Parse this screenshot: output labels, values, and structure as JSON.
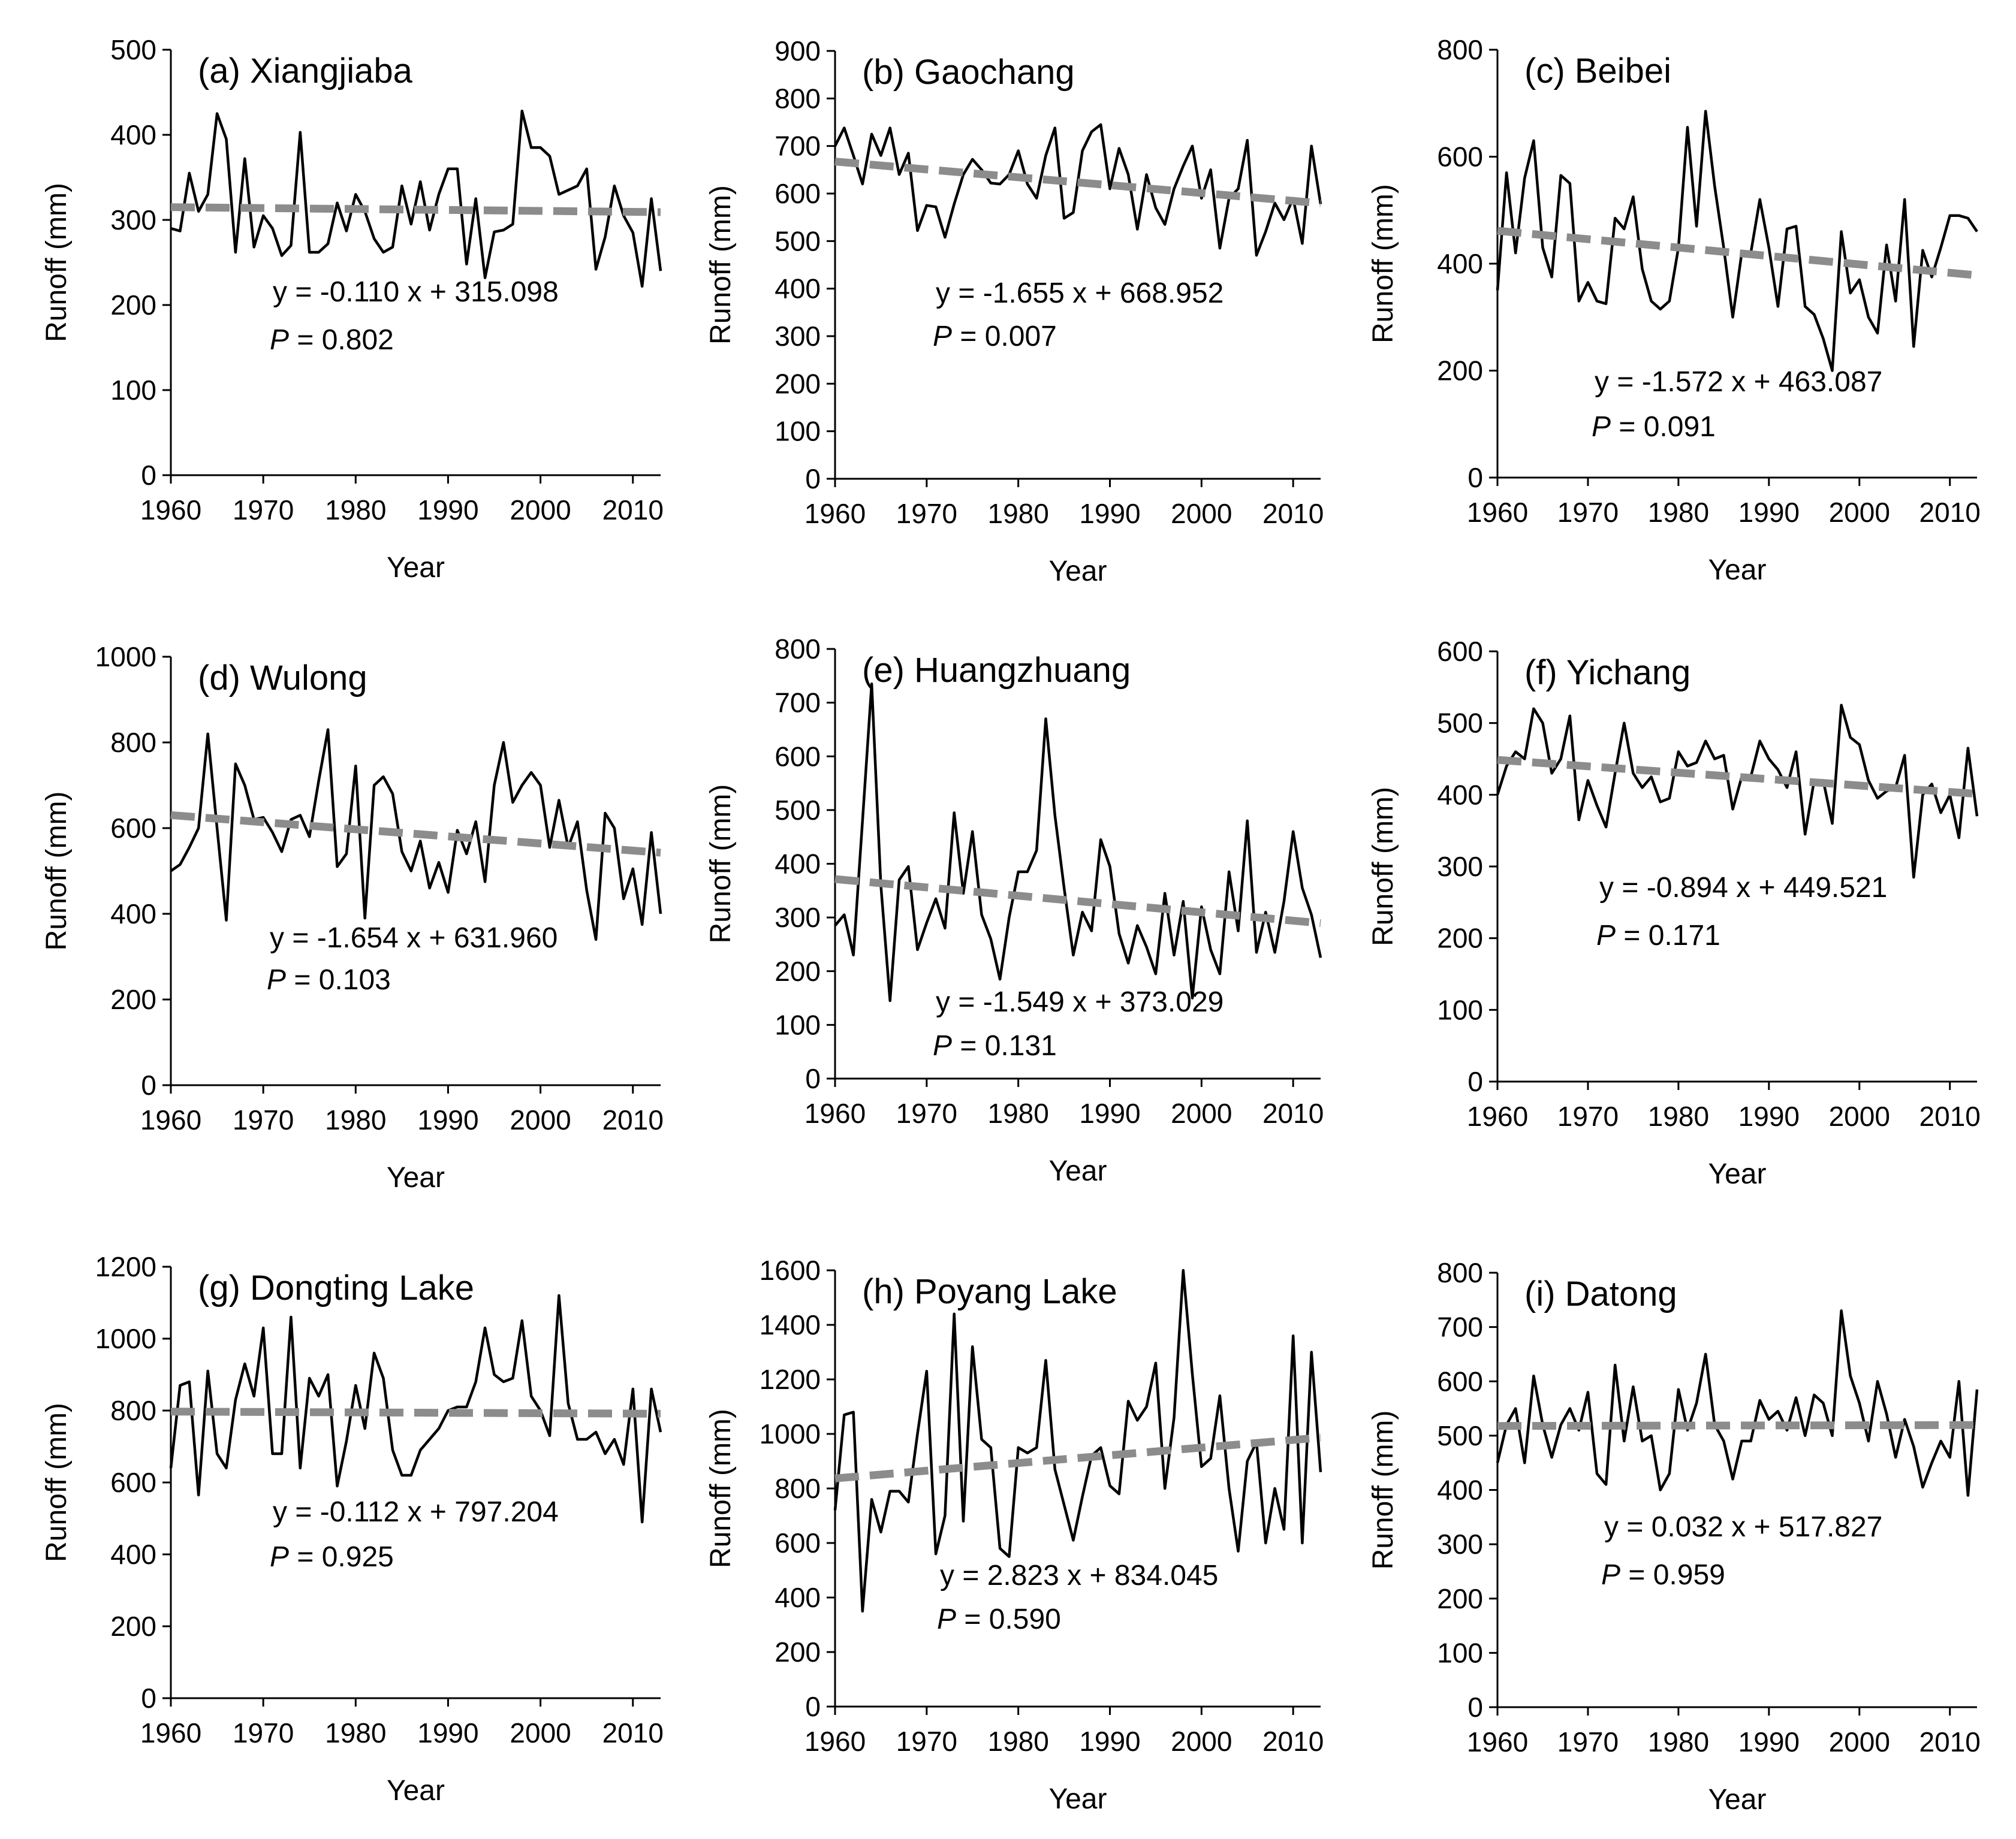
{
  "chart_data": [
    {
      "id": "a",
      "type": "line",
      "title": "(a)  Xiangjiaba",
      "xlabel": "Year",
      "ylabel": "Runoff (mm)",
      "xlim": [
        1960,
        2013
      ],
      "ylim": [
        0,
        500
      ],
      "xticks": [
        1960,
        1970,
        1980,
        1990,
        2000,
        2010
      ],
      "yticks": [
        0,
        100,
        200,
        300,
        400,
        500
      ],
      "x": [
        1960,
        1961,
        1962,
        1963,
        1964,
        1965,
        1966,
        1967,
        1968,
        1969,
        1970,
        1971,
        1972,
        1973,
        1974,
        1975,
        1976,
        1977,
        1978,
        1979,
        1980,
        1981,
        1982,
        1983,
        1984,
        1985,
        1986,
        1987,
        1988,
        1989,
        1990,
        1991,
        1992,
        1993,
        1994,
        1995,
        1996,
        1997,
        1998,
        1999,
        2000,
        2001,
        2002,
        2003,
        2004,
        2005,
        2006,
        2007,
        2008,
        2009,
        2010,
        2011,
        2012,
        2013
      ],
      "values": [
        290,
        287,
        355,
        310,
        330,
        425,
        395,
        262,
        372,
        268,
        305,
        290,
        258,
        270,
        403,
        262,
        262,
        272,
        320,
        287,
        330,
        310,
        278,
        262,
        268,
        340,
        295,
        345,
        288,
        330,
        360,
        360,
        248,
        325,
        232,
        286,
        288,
        295,
        428,
        385,
        385,
        375,
        330,
        335,
        340,
        360,
        242,
        280,
        340,
        305,
        285,
        222,
        325,
        240
      ],
      "trend": {
        "slope": -0.11,
        "intercept": 315.098
      },
      "equation_prefix": "y = ",
      "equation": "-0.110 x + 315.098",
      "p_label": "P",
      "p_value": " = 0.802"
    },
    {
      "id": "b",
      "type": "line",
      "title": "(b)  Gaochang",
      "xlabel": "Year",
      "ylabel": "Runoff (mm)",
      "xlim": [
        1960,
        2013
      ],
      "ylim": [
        0,
        900
      ],
      "xticks": [
        1960,
        1970,
        1980,
        1990,
        2000,
        2010
      ],
      "yticks": [
        0,
        100,
        200,
        300,
        400,
        500,
        600,
        700,
        800,
        900
      ],
      "x": [
        1960,
        1961,
        1962,
        1963,
        1964,
        1965,
        1966,
        1967,
        1968,
        1969,
        1970,
        1971,
        1972,
        1973,
        1974,
        1975,
        1976,
        1977,
        1978,
        1979,
        1980,
        1981,
        1982,
        1983,
        1984,
        1985,
        1986,
        1987,
        1988,
        1989,
        1990,
        1991,
        1992,
        1993,
        1994,
        1995,
        1996,
        1997,
        1998,
        1999,
        2000,
        2001,
        2002,
        2003,
        2004,
        2005,
        2006,
        2007,
        2008,
        2009,
        2010,
        2011,
        2012,
        2013
      ],
      "values": [
        700,
        738,
        680,
        620,
        725,
        680,
        738,
        640,
        685,
        522,
        575,
        572,
        508,
        578,
        640,
        672,
        650,
        622,
        620,
        640,
        690,
        620,
        590,
        680,
        738,
        548,
        560,
        690,
        730,
        745,
        610,
        695,
        640,
        525,
        640,
        570,
        535,
        610,
        658,
        700,
        590,
        650,
        485,
        590,
        610,
        712,
        470,
        520,
        580,
        545,
        590,
        495,
        700,
        578
      ],
      "trend": {
        "slope": -1.655,
        "intercept": 668.952
      },
      "equation_prefix": "y = ",
      "equation": "-1.655 x + 668.952",
      "p_label": "P",
      "p_value": " = 0.007"
    },
    {
      "id": "c",
      "type": "line",
      "title": "(c)  Beibei",
      "xlabel": "Year",
      "ylabel": "Runoff (mm)",
      "xlim": [
        1960,
        2013
      ],
      "ylim": [
        0,
        800
      ],
      "xticks": [
        1960,
        1970,
        1980,
        1990,
        2000,
        2010
      ],
      "yticks": [
        0,
        200,
        400,
        600,
        800
      ],
      "x": [
        1960,
        1961,
        1962,
        1963,
        1964,
        1965,
        1966,
        1967,
        1968,
        1969,
        1970,
        1971,
        1972,
        1973,
        1974,
        1975,
        1976,
        1977,
        1978,
        1979,
        1980,
        1981,
        1982,
        1983,
        1984,
        1985,
        1986,
        1987,
        1988,
        1989,
        1990,
        1991,
        1992,
        1993,
        1994,
        1995,
        1996,
        1997,
        1998,
        1999,
        2000,
        2001,
        2002,
        2003,
        2004,
        2005,
        2006,
        2007,
        2008,
        2009,
        2010,
        2011,
        2012,
        2013
      ],
      "values": [
        350,
        570,
        420,
        560,
        630,
        430,
        375,
        565,
        550,
        330,
        365,
        330,
        325,
        485,
        465,
        525,
        390,
        330,
        315,
        330,
        430,
        655,
        470,
        685,
        545,
        430,
        300,
        420,
        420,
        520,
        430,
        320,
        465,
        470,
        320,
        305,
        260,
        200,
        460,
        345,
        370,
        300,
        270,
        435,
        330,
        520,
        245,
        425,
        375,
        430,
        490,
        490,
        485,
        460
      ],
      "trend": {
        "slope": -1.572,
        "intercept": 463.087
      },
      "equation_prefix": "y = ",
      "equation": "-1.572 x + 463.087",
      "p_label": "P",
      "p_value": " = 0.091"
    },
    {
      "id": "d",
      "type": "line",
      "title": "(d)  Wulong",
      "xlabel": "Year",
      "ylabel": "Runoff (mm)",
      "xlim": [
        1960,
        2013
      ],
      "ylim": [
        0,
        1000
      ],
      "xticks": [
        1960,
        1970,
        1980,
        1990,
        2000,
        2010
      ],
      "yticks": [
        0,
        200,
        400,
        600,
        800,
        1000
      ],
      "x": [
        1960,
        1961,
        1962,
        1963,
        1964,
        1965,
        1966,
        1967,
        1968,
        1969,
        1970,
        1971,
        1972,
        1973,
        1974,
        1975,
        1976,
        1977,
        1978,
        1979,
        1980,
        1981,
        1982,
        1983,
        1984,
        1985,
        1986,
        1987,
        1988,
        1989,
        1990,
        1991,
        1992,
        1993,
        1994,
        1995,
        1996,
        1997,
        1998,
        1999,
        2000,
        2001,
        2002,
        2003,
        2004,
        2005,
        2006,
        2007,
        2008,
        2009,
        2010,
        2011,
        2012,
        2013
      ],
      "values": [
        500,
        515,
        555,
        600,
        820,
        600,
        385,
        750,
        700,
        620,
        625,
        590,
        545,
        620,
        630,
        580,
        710,
        830,
        510,
        540,
        745,
        390,
        700,
        720,
        680,
        545,
        500,
        570,
        460,
        520,
        450,
        595,
        540,
        615,
        475,
        700,
        800,
        660,
        700,
        730,
        700,
        555,
        665,
        555,
        615,
        455,
        340,
        635,
        600,
        435,
        505,
        375,
        590,
        400
      ],
      "trend": {
        "slope": -1.654,
        "intercept": 631.96
      },
      "equation_prefix": "y = ",
      "equation": "-1.654 x + 631.960",
      "p_label": "P",
      "p_value": " = 0.103"
    },
    {
      "id": "e",
      "type": "line",
      "title": "(e)  Huangzhuang",
      "xlabel": "Year",
      "ylabel": "Runoff (mm)",
      "xlim": [
        1960,
        2013
      ],
      "ylim": [
        0,
        800
      ],
      "xticks": [
        1960,
        1970,
        1980,
        1990,
        2000,
        2010
      ],
      "yticks": [
        0,
        100,
        200,
        300,
        400,
        500,
        600,
        700,
        800
      ],
      "x": [
        1960,
        1961,
        1962,
        1963,
        1964,
        1965,
        1966,
        1967,
        1968,
        1969,
        1970,
        1971,
        1972,
        1973,
        1974,
        1975,
        1976,
        1977,
        1978,
        1979,
        1980,
        1981,
        1982,
        1983,
        1984,
        1985,
        1986,
        1987,
        1988,
        1989,
        1990,
        1991,
        1992,
        1993,
        1994,
        1995,
        1996,
        1997,
        1998,
        1999,
        2000,
        2001,
        2002,
        2003,
        2004,
        2005,
        2006,
        2007,
        2008,
        2009,
        2010,
        2011,
        2012,
        2013
      ],
      "values": [
        285,
        305,
        230,
        480,
        735,
        360,
        145,
        370,
        395,
        240,
        290,
        335,
        280,
        495,
        345,
        460,
        305,
        260,
        185,
        300,
        385,
        385,
        425,
        670,
        490,
        355,
        230,
        310,
        275,
        445,
        395,
        270,
        215,
        285,
        245,
        195,
        345,
        230,
        330,
        150,
        320,
        240,
        195,
        385,
        275,
        480,
        235,
        310,
        235,
        330,
        460,
        355,
        305,
        225
      ],
      "trend": {
        "slope": -1.549,
        "intercept": 373.029
      },
      "equation_prefix": "y = ",
      "equation": "-1.549 x + 373.029",
      "p_label": "P",
      "p_value": " = 0.131"
    },
    {
      "id": "f",
      "type": "line",
      "title": "(f)  Yichang",
      "xlabel": "Year",
      "ylabel": "Runoff (mm)",
      "xlim": [
        1960,
        2013
      ],
      "ylim": [
        0,
        600
      ],
      "xticks": [
        1960,
        1970,
        1980,
        1990,
        2000,
        2010
      ],
      "yticks": [
        0,
        100,
        200,
        300,
        400,
        500,
        600
      ],
      "x": [
        1960,
        1961,
        1962,
        1963,
        1964,
        1965,
        1966,
        1967,
        1968,
        1969,
        1970,
        1971,
        1972,
        1973,
        1974,
        1975,
        1976,
        1977,
        1978,
        1979,
        1980,
        1981,
        1982,
        1983,
        1984,
        1985,
        1986,
        1987,
        1988,
        1989,
        1990,
        1991,
        1992,
        1993,
        1994,
        1995,
        1996,
        1997,
        1998,
        1999,
        2000,
        2001,
        2002,
        2003,
        2004,
        2005,
        2006,
        2007,
        2008,
        2009,
        2010,
        2011,
        2012,
        2013
      ],
      "values": [
        400,
        440,
        460,
        450,
        520,
        500,
        430,
        450,
        510,
        365,
        420,
        385,
        355,
        430,
        500,
        430,
        410,
        425,
        390,
        395,
        460,
        440,
        445,
        475,
        450,
        455,
        380,
        425,
        425,
        475,
        450,
        435,
        410,
        460,
        345,
        420,
        420,
        360,
        525,
        480,
        470,
        420,
        395,
        405,
        410,
        455,
        285,
        400,
        415,
        375,
        400,
        340,
        465,
        370
      ],
      "trend": {
        "slope": -0.894,
        "intercept": 449.521
      },
      "equation_prefix": "y = ",
      "equation": "-0.894 x + 449.521",
      "p_label": "P",
      "p_value": " = 0.171"
    },
    {
      "id": "g",
      "type": "line",
      "title": "(g)  Dongting Lake",
      "xlabel": "Year",
      "ylabel": "Runoff (mm)",
      "xlim": [
        1960,
        2013
      ],
      "ylim": [
        0,
        1200
      ],
      "xticks": [
        1960,
        1970,
        1980,
        1990,
        2000,
        2010
      ],
      "yticks": [
        0,
        200,
        400,
        600,
        800,
        1000,
        1200
      ],
      "x": [
        1960,
        1961,
        1962,
        1963,
        1964,
        1965,
        1966,
        1967,
        1968,
        1969,
        1970,
        1971,
        1972,
        1973,
        1974,
        1975,
        1976,
        1977,
        1978,
        1979,
        1980,
        1981,
        1982,
        1983,
        1984,
        1985,
        1986,
        1987,
        1988,
        1989,
        1990,
        1991,
        1992,
        1993,
        1994,
        1995,
        1996,
        1997,
        1998,
        1999,
        2000,
        2001,
        2002,
        2003,
        2004,
        2005,
        2006,
        2007,
        2008,
        2009,
        2010,
        2011,
        2012,
        2013
      ],
      "values": [
        640,
        870,
        880,
        565,
        910,
        680,
        640,
        830,
        930,
        840,
        1030,
        680,
        680,
        1060,
        640,
        890,
        840,
        900,
        590,
        715,
        870,
        750,
        960,
        890,
        690,
        620,
        620,
        690,
        720,
        750,
        800,
        810,
        810,
        880,
        1030,
        900,
        880,
        890,
        1050,
        840,
        800,
        730,
        1120,
        820,
        720,
        720,
        740,
        680,
        720,
        650,
        860,
        490,
        860,
        740
      ],
      "trend": {
        "slope": -0.112,
        "intercept": 797.204
      },
      "equation_prefix": "y = ",
      "equation": "-0.112 x + 797.204",
      "p_label": "P",
      "p_value": " = 0.925"
    },
    {
      "id": "h",
      "type": "line",
      "title": "(h)  Poyang Lake",
      "xlabel": "Year",
      "ylabel": "Runoff (mm)",
      "xlim": [
        1960,
        2013
      ],
      "ylim": [
        0,
        1600
      ],
      "xticks": [
        1960,
        1970,
        1980,
        1990,
        2000,
        2010
      ],
      "yticks": [
        0,
        200,
        400,
        600,
        800,
        1000,
        1200,
        1400,
        1600
      ],
      "x": [
        1960,
        1961,
        1962,
        1963,
        1964,
        1965,
        1966,
        1967,
        1968,
        1969,
        1970,
        1971,
        1972,
        1973,
        1974,
        1975,
        1976,
        1977,
        1978,
        1979,
        1980,
        1981,
        1982,
        1983,
        1984,
        1985,
        1986,
        1987,
        1988,
        1989,
        1990,
        1991,
        1992,
        1993,
        1994,
        1995,
        1996,
        1997,
        1998,
        1999,
        2000,
        2001,
        2002,
        2003,
        2004,
        2005,
        2006,
        2007,
        2008,
        2009,
        2010,
        2011,
        2012,
        2013
      ],
      "values": [
        720,
        1070,
        1080,
        350,
        760,
        640,
        790,
        790,
        750,
        1000,
        1230,
        560,
        700,
        1440,
        680,
        1320,
        980,
        950,
        580,
        550,
        950,
        930,
        950,
        1270,
        870,
        740,
        610,
        770,
        920,
        950,
        810,
        780,
        1120,
        1050,
        1100,
        1260,
        800,
        1060,
        1600,
        1220,
        880,
        910,
        1140,
        800,
        570,
        900,
        970,
        600,
        800,
        650,
        1360,
        600,
        1300,
        860
      ],
      "trend": {
        "slope": 2.823,
        "intercept": 834.045
      },
      "equation_prefix": "y = ",
      "equation": "2.823 x + 834.045",
      "p_label": "P",
      "p_value": " = 0.590"
    },
    {
      "id": "i",
      "type": "line",
      "title": "(i)  Datong",
      "xlabel": "Year",
      "ylabel": "Runoff (mm)",
      "xlim": [
        1960,
        2013
      ],
      "ylim": [
        0,
        800
      ],
      "xticks": [
        1960,
        1970,
        1980,
        1990,
        2000,
        2010
      ],
      "yticks": [
        0,
        100,
        200,
        300,
        400,
        500,
        600,
        700,
        800
      ],
      "x": [
        1960,
        1961,
        1962,
        1963,
        1964,
        1965,
        1966,
        1967,
        1968,
        1969,
        1970,
        1971,
        1972,
        1973,
        1974,
        1975,
        1976,
        1977,
        1978,
        1979,
        1980,
        1981,
        1982,
        1983,
        1984,
        1985,
        1986,
        1987,
        1988,
        1989,
        1990,
        1991,
        1992,
        1993,
        1994,
        1995,
        1996,
        1997,
        1998,
        1999,
        2000,
        2001,
        2002,
        2003,
        2004,
        2005,
        2006,
        2007,
        2008,
        2009,
        2010,
        2011,
        2012,
        2013
      ],
      "values": [
        450,
        520,
        550,
        450,
        610,
        520,
        460,
        520,
        550,
        510,
        580,
        430,
        410,
        630,
        490,
        590,
        490,
        500,
        400,
        430,
        585,
        510,
        560,
        650,
        520,
        490,
        420,
        490,
        490,
        565,
        530,
        545,
        510,
        570,
        500,
        575,
        560,
        500,
        730,
        610,
        560,
        490,
        600,
        540,
        460,
        530,
        480,
        405,
        450,
        490,
        460,
        600,
        390,
        585
      ],
      "trend": {
        "slope": 0.032,
        "intercept": 517.827
      },
      "equation_prefix": "y = ",
      "equation": "0.032 x + 517.827",
      "p_label": "P",
      "p_value": " = 0.959"
    }
  ]
}
